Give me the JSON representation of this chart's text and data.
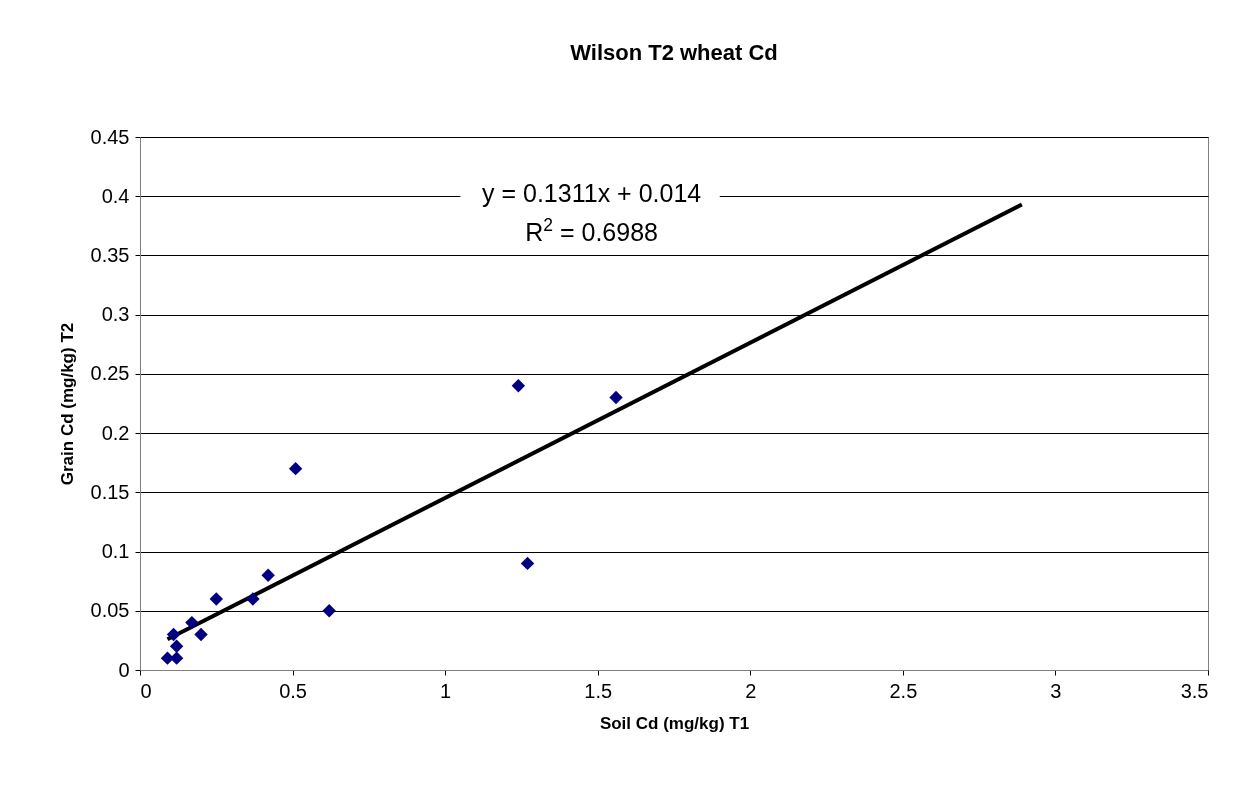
{
  "chart_data": {
    "type": "scatter",
    "title": "Wilson T2 wheat Cd",
    "xlabel": "Soil Cd (mg/kg) T1",
    "ylabel": "Grain Cd (mg/kg) T2",
    "x": [
      0.09,
      0.12,
      0.12,
      0.11,
      0.17,
      0.2,
      0.25,
      0.37,
      0.42,
      0.51,
      0.62,
      1.24,
      1.27,
      1.56
    ],
    "series": [
      {
        "color": "#000080",
        "marker": "diamond",
        "values": [
          0.01,
          0.01,
          0.02,
          0.03,
          0.04,
          0.03,
          0.06,
          0.06,
          0.08,
          0.17,
          0.05,
          0.24,
          0.09,
          0.23
        ]
      },
      {
        "type": "line",
        "color": "#000000",
        "marker": "none",
        "x": [
          0.09,
          2.89
        ],
        "values": [
          0.026,
          0.393
        ]
      }
    ],
    "annotations": [
      "y = 0.1311x + 0.014",
      "R$^{2}$ = 0.6988"
    ],
    "xlim": [
      0,
      3.5
    ],
    "xticks": [
      0,
      0.5,
      1,
      1.5,
      2,
      2.5,
      3,
      3.5
    ],
    "ylim": [
      0,
      0.45
    ],
    "yticks": [
      0,
      0.05,
      0.1,
      0.15,
      0.2,
      0.25,
      0.3,
      0.35,
      0.4,
      0.45
    ],
    "grid": "y"
  }
}
